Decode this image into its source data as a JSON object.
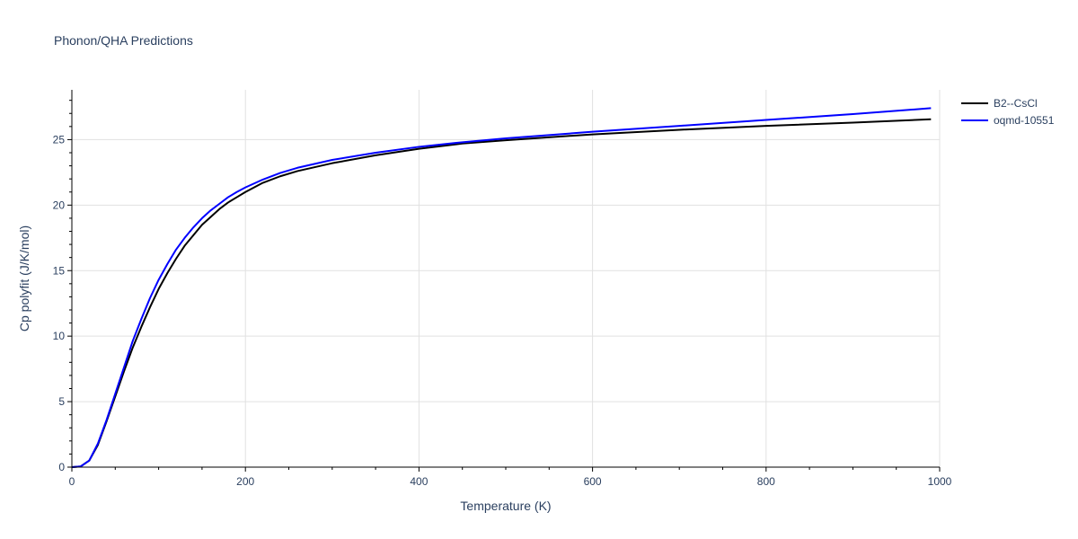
{
  "chart_data": {
    "type": "line",
    "title": "Phonon/QHA Predictions",
    "xlabel": "Temperature (K)",
    "ylabel": "Cp polyfit (J/K/mol)",
    "xlim": [
      0,
      1000
    ],
    "ylim": [
      0,
      28.8
    ],
    "xticks": [
      0,
      200,
      400,
      600,
      800,
      1000
    ],
    "yticks": [
      0,
      5,
      10,
      15,
      20,
      25
    ],
    "grid": true,
    "legend_position": "top-right",
    "series": [
      {
        "name": "B2--CsCl",
        "color": "#000000",
        "x": [
          0,
          10,
          20,
          30,
          40,
          50,
          60,
          70,
          80,
          90,
          100,
          110,
          120,
          130,
          140,
          150,
          160,
          170,
          180,
          190,
          200,
          220,
          240,
          260,
          280,
          300,
          350,
          400,
          450,
          500,
          600,
          700,
          800,
          900,
          990
        ],
        "y": [
          0,
          0.05,
          0.5,
          1.7,
          3.5,
          5.4,
          7.3,
          9.1,
          10.7,
          12.2,
          13.6,
          14.8,
          15.9,
          16.9,
          17.7,
          18.5,
          19.1,
          19.7,
          20.2,
          20.6,
          21.0,
          21.7,
          22.2,
          22.6,
          22.9,
          23.2,
          23.8,
          24.3,
          24.7,
          24.95,
          25.4,
          25.75,
          26.05,
          26.3,
          26.55
        ]
      },
      {
        "name": "oqmd-10551",
        "color": "#0000ff",
        "x": [
          0,
          10,
          20,
          30,
          40,
          50,
          60,
          70,
          80,
          90,
          100,
          110,
          120,
          130,
          140,
          150,
          160,
          170,
          180,
          190,
          200,
          220,
          240,
          260,
          280,
          300,
          350,
          400,
          450,
          500,
          600,
          700,
          800,
          900,
          990
        ],
        "y": [
          0,
          0.05,
          0.5,
          1.8,
          3.6,
          5.6,
          7.6,
          9.6,
          11.3,
          12.9,
          14.3,
          15.5,
          16.6,
          17.5,
          18.3,
          19.0,
          19.6,
          20.1,
          20.6,
          21.0,
          21.35,
          21.95,
          22.45,
          22.85,
          23.15,
          23.45,
          24.0,
          24.45,
          24.8,
          25.1,
          25.6,
          26.05,
          26.5,
          26.95,
          27.4
        ]
      }
    ]
  }
}
